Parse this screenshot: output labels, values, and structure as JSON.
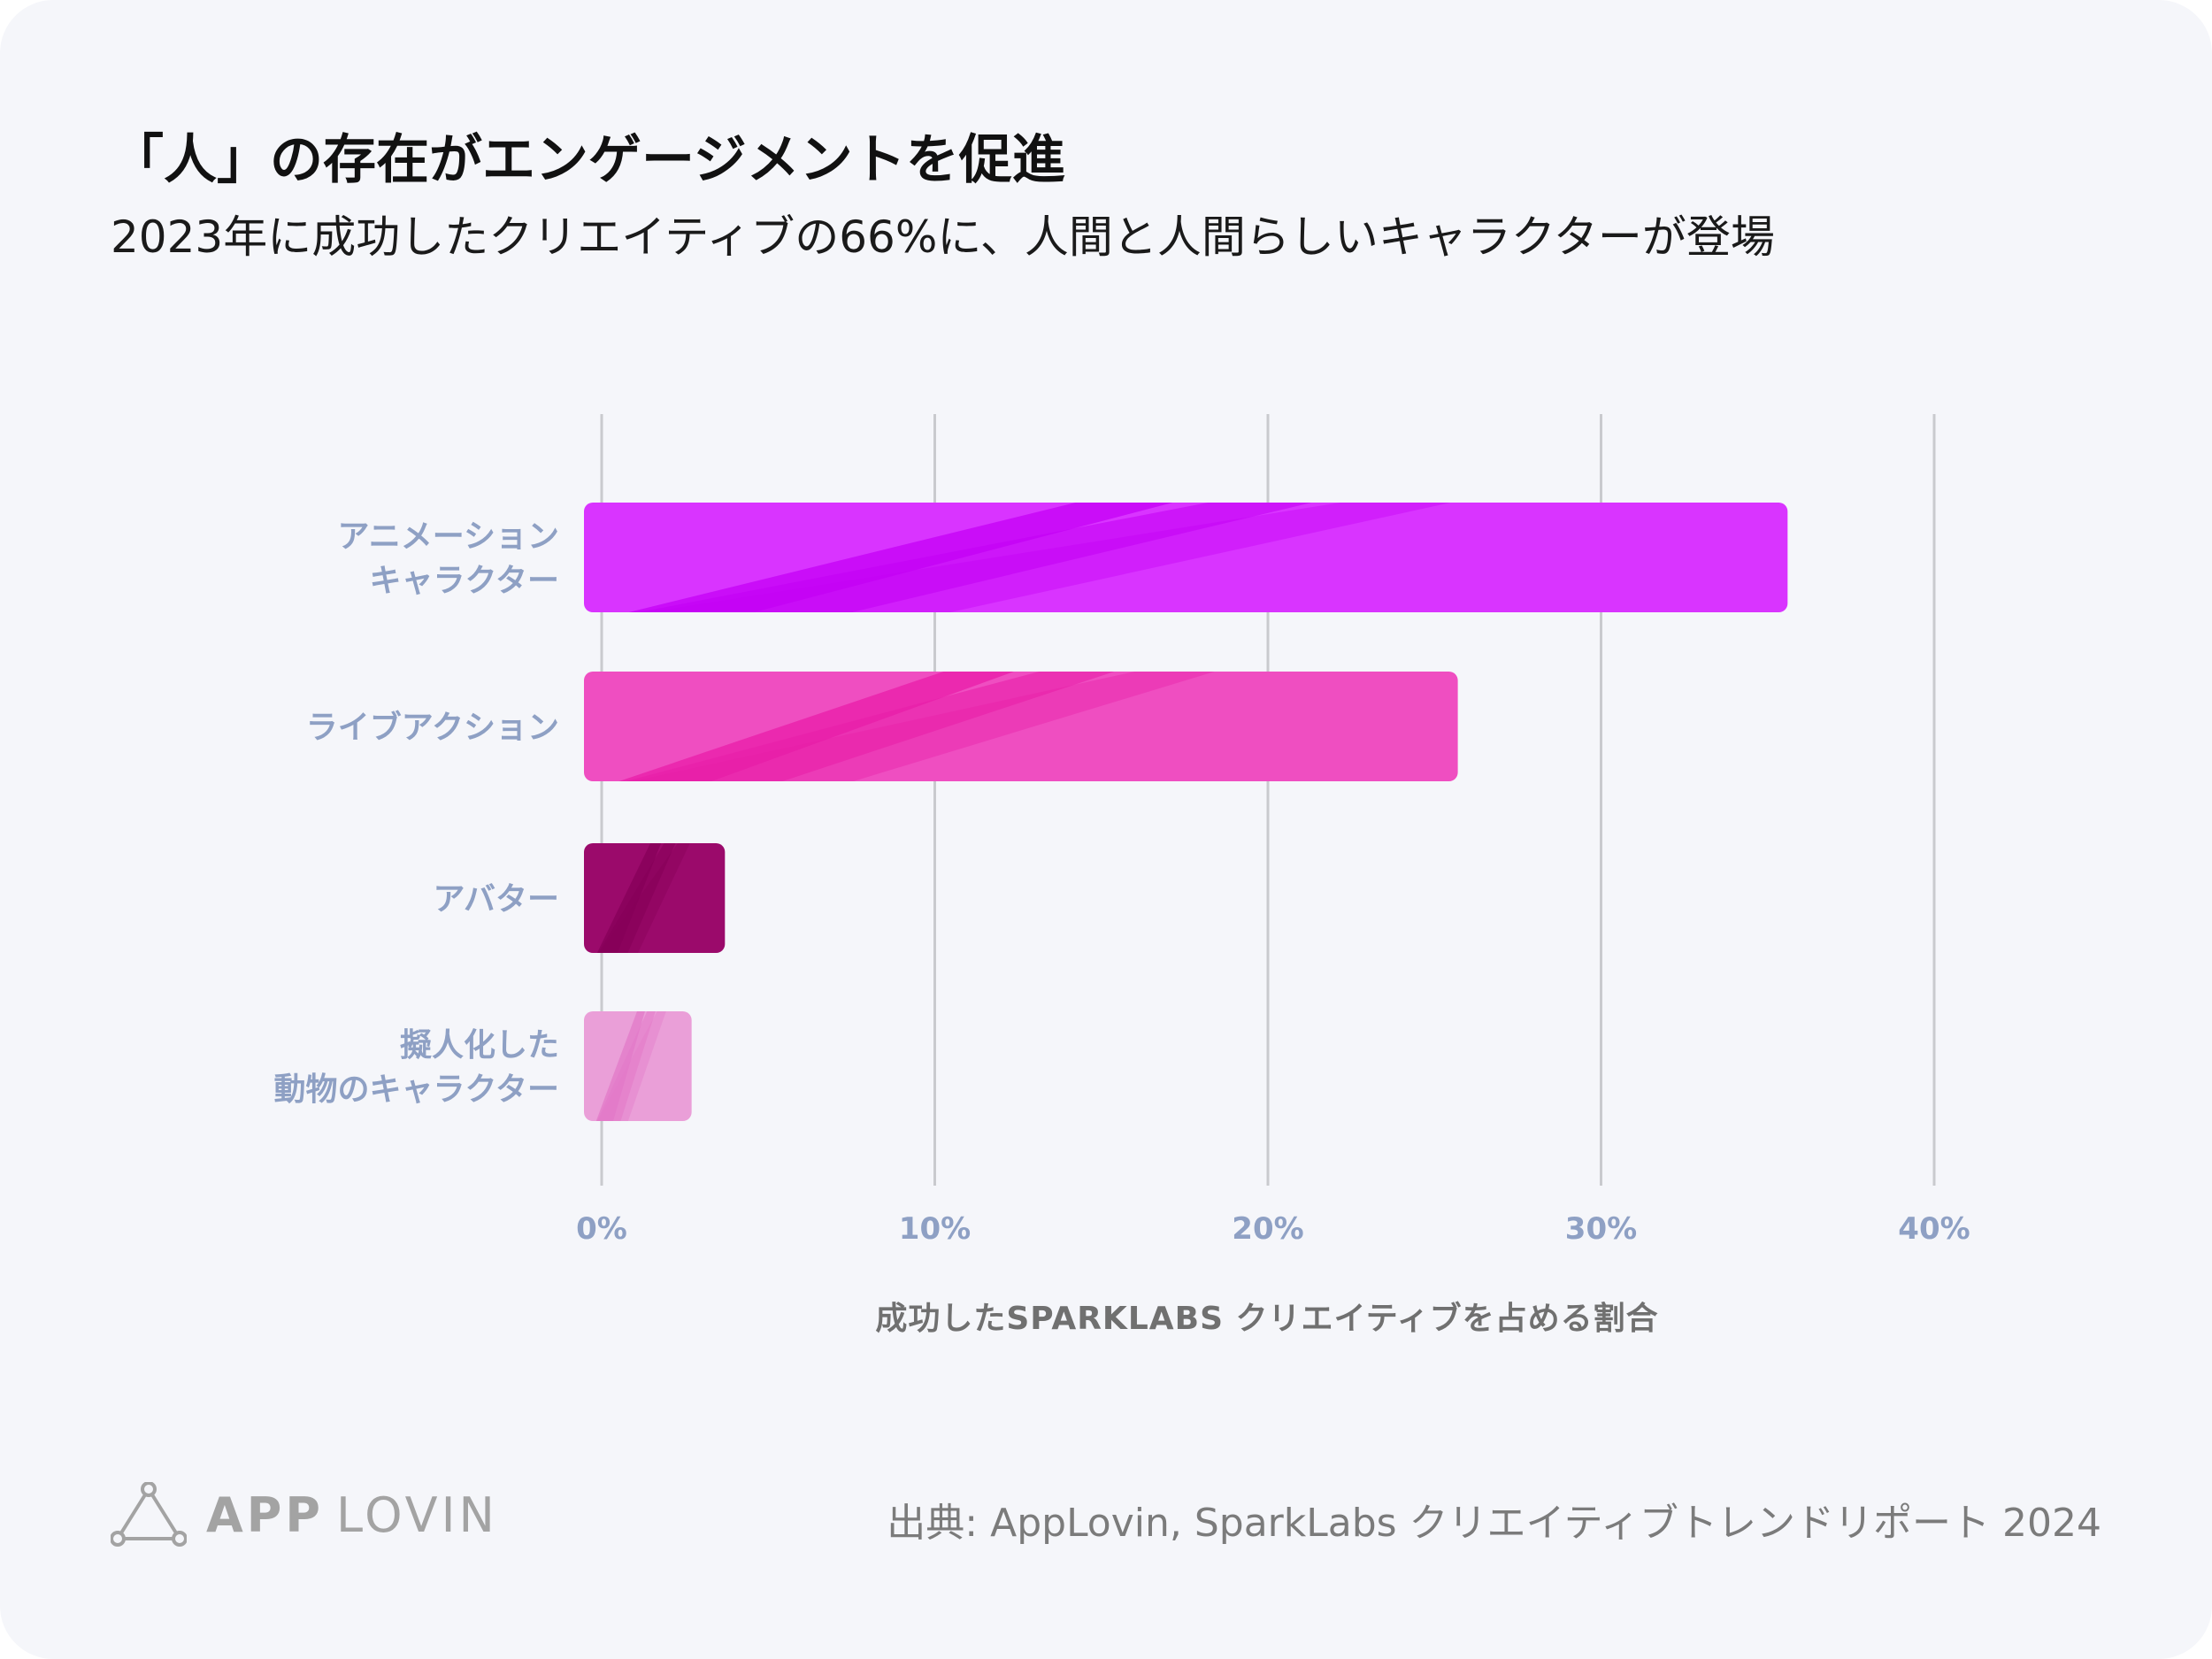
{
  "header": {
    "title": "「人」の存在がエンゲージメントを促進",
    "subtitle": "2023年に成功したクリエイティブの66%に、人間と人間らしいキャラクターが登場"
  },
  "chart_data": {
    "type": "bar",
    "orientation": "horizontal",
    "categories": [
      [
        "アニメーション",
        "キャラクター"
      ],
      [
        "ライブアクション"
      ],
      [
        "アバター"
      ],
      [
        "擬人化した",
        "動物のキャラクター"
      ]
    ],
    "values": [
      35.6,
      25.7,
      3.7,
      2.7
    ],
    "colors": [
      "#d934ff",
      "#ef4ec1",
      "#9b0a6b",
      "#ea9fd8"
    ],
    "texture_colors": [
      "#c400f5",
      "#e91ea8",
      "#850058",
      "#e27ac8"
    ],
    "xlim": [
      0,
      40
    ],
    "xticks": [
      0,
      10,
      20,
      30,
      40
    ],
    "xtick_labels": [
      "0%",
      "10%",
      "20%",
      "30%",
      "40%"
    ],
    "xlabel": "成功したSPARKLABS クリエイティブを占める割合",
    "ylabel": "",
    "grid": true
  },
  "footer": {
    "source": "出典: AppLovin, SparkLabs クリエイティブトレンドリポート 2024",
    "logo_bold": "APP",
    "logo_light": "LOVIN"
  }
}
